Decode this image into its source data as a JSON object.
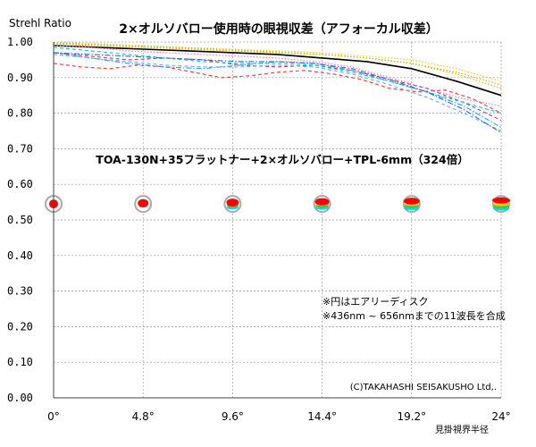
{
  "chart_data": {
    "type": "line",
    "title": "2×オルソバロー使用時の眼視収差（アフォーカル収差）",
    "subtitle": "TOA-130N+35フラットナー+2×オルソバロー+TPL-6mm（324倍）",
    "ylabel": "Strehl Ratio",
    "xlabel": "見掛視界半径",
    "ylim": [
      0.0,
      1.0
    ],
    "xlim": [
      0,
      24
    ],
    "grid": true,
    "y_ticks": [
      "0.00",
      "0.10",
      "0.20",
      "0.30",
      "0.40",
      "0.50",
      "0.60",
      "0.70",
      "0.80",
      "0.90",
      "1.00"
    ],
    "x_ticks": [
      "0°",
      "4.8°",
      "9.6°",
      "14.4°",
      "19.2°",
      "24°"
    ],
    "x_tick_values": [
      0,
      4.8,
      9.6,
      14.4,
      19.2,
      24
    ],
    "notes": [
      "※円はエアリーディスク",
      "※436nm ~ 656nmまでの11波長を合成"
    ],
    "copyright": "(C)TAKAHASHI SEISAKUSHO Ltd,.",
    "spot_diagrams_at": [
      0,
      4.8,
      9.6,
      14.4,
      19.2,
      24
    ],
    "series": [
      {
        "color": "#000000",
        "style": "solid",
        "x": [
          0,
          2.4,
          4.8,
          7.2,
          9.6,
          12,
          14.4,
          16.8,
          19.2,
          21.6,
          24
        ],
        "y": [
          0.99,
          0.985,
          0.98,
          0.975,
          0.97,
          0.965,
          0.955,
          0.945,
          0.925,
          0.89,
          0.85
        ]
      },
      {
        "color": "#ff9900",
        "style": "dotted",
        "x": [
          0,
          2.4,
          4.8,
          7.2,
          9.6,
          12,
          14.4,
          16.8,
          19.2,
          21.6,
          24
        ],
        "y": [
          0.995,
          0.99,
          0.985,
          0.98,
          0.975,
          0.97,
          0.965,
          0.955,
          0.94,
          0.915,
          0.88
        ]
      },
      {
        "color": "#ffcc00",
        "style": "dotted",
        "x": [
          0,
          2.4,
          4.8,
          7.2,
          9.6,
          12,
          14.4,
          16.8,
          19.2,
          21.6,
          24
        ],
        "y": [
          1.0,
          0.995,
          0.99,
          0.985,
          0.98,
          0.975,
          0.97,
          0.96,
          0.95,
          0.925,
          0.89
        ]
      },
      {
        "color": "#99cc00",
        "style": "dotted",
        "x": [
          0,
          2.4,
          4.8,
          7.2,
          9.6,
          12,
          14.4,
          16.8,
          19.2,
          21.6,
          24
        ],
        "y": [
          0.998,
          0.993,
          0.988,
          0.983,
          0.978,
          0.972,
          0.965,
          0.955,
          0.94,
          0.91,
          0.87
        ]
      },
      {
        "color": "#ff3333",
        "style": "dashed",
        "x": [
          0,
          1.5,
          3,
          4.5,
          6,
          7.5,
          9,
          10.5,
          12,
          13.5,
          15,
          16.5,
          18,
          19.5,
          21,
          22.5,
          24
        ],
        "y": [
          0.94,
          0.93,
          0.925,
          0.935,
          0.93,
          0.915,
          0.9,
          0.905,
          0.915,
          0.92,
          0.91,
          0.895,
          0.87,
          0.86,
          0.865,
          0.84,
          0.8
        ]
      },
      {
        "color": "#cc3366",
        "style": "dashed",
        "x": [
          0,
          2,
          4,
          6,
          8,
          10,
          12,
          14,
          16,
          18,
          20,
          22,
          24
        ],
        "y": [
          0.97,
          0.96,
          0.95,
          0.955,
          0.95,
          0.935,
          0.93,
          0.935,
          0.92,
          0.895,
          0.87,
          0.83,
          0.78
        ]
      },
      {
        "color": "#3399ff",
        "style": "dashdot",
        "x": [
          0,
          2,
          4,
          6,
          8,
          10,
          12,
          14,
          16,
          18,
          20,
          22,
          24
        ],
        "y": [
          0.97,
          0.955,
          0.94,
          0.93,
          0.925,
          0.935,
          0.945,
          0.94,
          0.92,
          0.89,
          0.86,
          0.82,
          0.76
        ]
      },
      {
        "color": "#00cccc",
        "style": "dashed",
        "x": [
          0,
          2,
          4,
          6,
          8,
          10,
          12,
          14,
          16,
          18,
          20,
          22,
          24
        ],
        "y": [
          0.985,
          0.975,
          0.965,
          0.955,
          0.945,
          0.94,
          0.94,
          0.935,
          0.915,
          0.89,
          0.86,
          0.83,
          0.8
        ]
      },
      {
        "color": "#66aaff",
        "style": "dashed",
        "x": [
          0,
          2,
          4,
          6,
          8,
          10,
          12,
          14,
          16,
          18,
          20,
          22,
          24
        ],
        "y": [
          0.965,
          0.955,
          0.945,
          0.935,
          0.93,
          0.93,
          0.935,
          0.93,
          0.91,
          0.88,
          0.845,
          0.8,
          0.75
        ]
      },
      {
        "color": "#3366cc",
        "style": "dashdot",
        "x": [
          0,
          2,
          4,
          6,
          8,
          10,
          12,
          14,
          16,
          18,
          20,
          22,
          24
        ],
        "y": [
          0.97,
          0.965,
          0.96,
          0.955,
          0.95,
          0.945,
          0.945,
          0.94,
          0.925,
          0.895,
          0.86,
          0.81,
          0.745
        ]
      },
      {
        "color": "#ff66cc",
        "style": "dotted",
        "x": [
          0,
          2,
          4,
          6,
          8,
          10,
          12,
          14,
          16,
          18,
          20,
          22,
          24
        ],
        "y": [
          0.99,
          0.985,
          0.975,
          0.97,
          0.965,
          0.96,
          0.955,
          0.945,
          0.93,
          0.9,
          0.87,
          0.84,
          0.82
        ]
      }
    ]
  }
}
